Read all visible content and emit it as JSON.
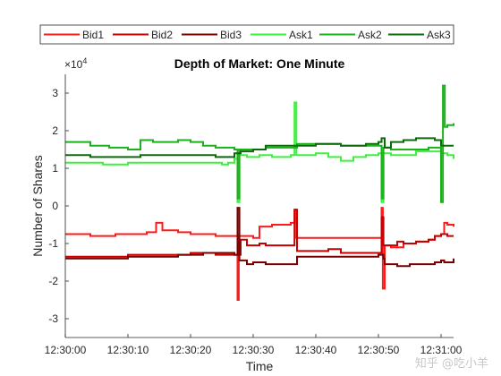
{
  "chart_data": {
    "type": "line",
    "title": "Depth of Market: One Minute",
    "xlabel": "Time",
    "ylabel": "Number of Shares",
    "y_exponent_label": "×10",
    "y_exponent_power": "4",
    "x_range_seconds": [
      0,
      62
    ],
    "ylim": [
      -3.5,
      3.5
    ],
    "x_ticks": [
      {
        "t": 0,
        "label": "12:30:00"
      },
      {
        "t": 10,
        "label": "12:30:10"
      },
      {
        "t": 20,
        "label": "12:30:20"
      },
      {
        "t": 30,
        "label": "12:30:30"
      },
      {
        "t": 40,
        "label": "12:30:40"
      },
      {
        "t": 50,
        "label": "12:30:50"
      },
      {
        "t": 60,
        "label": "12:31:00"
      }
    ],
    "y_ticks": [
      -3,
      -2,
      -1,
      0,
      1,
      2,
      3
    ],
    "grid": false,
    "legend_position": "top",
    "series": [
      {
        "name": "Bid1",
        "color": "#ff1a1a",
        "points": [
          [
            0,
            -0.75
          ],
          [
            4,
            -0.8
          ],
          [
            8,
            -0.75
          ],
          [
            13,
            -0.7
          ],
          [
            14.5,
            -0.45
          ],
          [
            15.5,
            -0.65
          ],
          [
            18,
            -0.7
          ],
          [
            20,
            -0.75
          ],
          [
            24,
            -0.8
          ],
          [
            27,
            -0.8
          ],
          [
            27.5,
            -2.5
          ],
          [
            27.7,
            -0.8
          ],
          [
            30,
            -0.85
          ],
          [
            31,
            -0.55
          ],
          [
            33,
            -0.5
          ],
          [
            36,
            -0.45
          ],
          [
            36.6,
            -0.1
          ],
          [
            36.9,
            -0.85
          ],
          [
            42,
            -0.85
          ],
          [
            48,
            -0.85
          ],
          [
            50,
            -0.85
          ],
          [
            50.5,
            -0.05
          ],
          [
            50.7,
            -2.2
          ],
          [
            51,
            -1.05
          ],
          [
            52,
            -1.1
          ],
          [
            54,
            -1.0
          ],
          [
            56,
            -0.95
          ],
          [
            58,
            -0.9
          ],
          [
            59,
            -0.8
          ],
          [
            60,
            -0.75
          ],
          [
            60.5,
            -0.45
          ],
          [
            61,
            -0.5
          ],
          [
            62,
            -0.55
          ]
        ]
      },
      {
        "name": "Bid2",
        "color": "#c40000",
        "points": [
          [
            0,
            -1.35
          ],
          [
            4,
            -1.35
          ],
          [
            8,
            -1.35
          ],
          [
            10,
            -1.3
          ],
          [
            14,
            -1.3
          ],
          [
            20,
            -1.25
          ],
          [
            24,
            -1.3
          ],
          [
            27.5,
            -1.3
          ],
          [
            28,
            -0.9
          ],
          [
            29,
            -1.05
          ],
          [
            31,
            -1.0
          ],
          [
            32,
            -1.05
          ],
          [
            36,
            -1.05
          ],
          [
            36.6,
            -0.1
          ],
          [
            37,
            -1.2
          ],
          [
            42,
            -1.15
          ],
          [
            44,
            -1.25
          ],
          [
            50,
            -1.25
          ],
          [
            50.5,
            -0.3
          ],
          [
            50.8,
            -1.05
          ],
          [
            51,
            -1.05
          ],
          [
            53,
            -0.95
          ],
          [
            54,
            -1.0
          ],
          [
            56,
            -0.95
          ],
          [
            57,
            -0.95
          ],
          [
            58,
            -0.9
          ],
          [
            59,
            -0.8
          ],
          [
            60,
            -0.75
          ],
          [
            61,
            -0.8
          ],
          [
            62,
            -0.8
          ]
        ]
      },
      {
        "name": "Bid3",
        "color": "#7a0000",
        "points": [
          [
            0,
            -1.4
          ],
          [
            8,
            -1.4
          ],
          [
            10,
            -1.35
          ],
          [
            14,
            -1.35
          ],
          [
            18,
            -1.3
          ],
          [
            22,
            -1.25
          ],
          [
            25,
            -1.25
          ],
          [
            27,
            -1.3
          ],
          [
            27.5,
            -0.05
          ],
          [
            27.8,
            -1.45
          ],
          [
            29,
            -1.55
          ],
          [
            30,
            -1.5
          ],
          [
            32,
            -1.55
          ],
          [
            36,
            -1.55
          ],
          [
            37,
            -1.35
          ],
          [
            42,
            -1.35
          ],
          [
            44,
            -1.35
          ],
          [
            50,
            -1.3
          ],
          [
            50.8,
            -1.4
          ],
          [
            51,
            -1.55
          ],
          [
            53,
            -1.6
          ],
          [
            55,
            -1.55
          ],
          [
            58,
            -1.55
          ],
          [
            59,
            -1.5
          ],
          [
            60,
            -1.45
          ],
          [
            60.5,
            -1.5
          ],
          [
            62,
            -1.4
          ]
        ]
      },
      {
        "name": "Ask1",
        "color": "#3df23d",
        "points": [
          [
            0,
            1.15
          ],
          [
            4,
            1.15
          ],
          [
            6,
            1.1
          ],
          [
            10,
            1.15
          ],
          [
            14,
            1.15
          ],
          [
            18,
            1.15
          ],
          [
            22,
            1.15
          ],
          [
            25,
            1.1
          ],
          [
            26,
            1.15
          ],
          [
            27,
            1.25
          ],
          [
            27.5,
            0.1
          ],
          [
            27.8,
            1.35
          ],
          [
            29,
            1.3
          ],
          [
            31,
            1.35
          ],
          [
            33,
            1.3
          ],
          [
            36,
            1.35
          ],
          [
            36.6,
            2.75
          ],
          [
            36.9,
            1.35
          ],
          [
            38,
            1.35
          ],
          [
            40,
            1.4
          ],
          [
            42,
            1.3
          ],
          [
            44,
            1.2
          ],
          [
            46,
            1.3
          ],
          [
            48,
            1.35
          ],
          [
            50,
            1.4
          ],
          [
            50.5,
            0.1
          ],
          [
            50.8,
            1.4
          ],
          [
            52,
            1.35
          ],
          [
            56,
            1.45
          ],
          [
            58,
            1.45
          ],
          [
            60,
            1.4
          ],
          [
            61,
            1.35
          ],
          [
            62,
            1.25
          ]
        ]
      },
      {
        "name": "Ask2",
        "color": "#1cb01c",
        "points": [
          [
            0,
            1.7
          ],
          [
            4,
            1.6
          ],
          [
            7,
            1.55
          ],
          [
            10,
            1.5
          ],
          [
            11,
            1.5
          ],
          [
            12,
            1.75
          ],
          [
            14,
            1.7
          ],
          [
            16,
            1.7
          ],
          [
            18,
            1.75
          ],
          [
            20,
            1.7
          ],
          [
            22,
            1.6
          ],
          [
            24,
            1.55
          ],
          [
            27,
            1.5
          ],
          [
            27.5,
            0.2
          ],
          [
            27.8,
            1.5
          ],
          [
            30,
            1.5
          ],
          [
            32,
            1.55
          ],
          [
            36,
            1.55
          ],
          [
            37,
            1.65
          ],
          [
            40,
            1.65
          ],
          [
            44,
            1.6
          ],
          [
            48,
            1.6
          ],
          [
            50,
            1.6
          ],
          [
            50.5,
            0.2
          ],
          [
            50.8,
            1.55
          ],
          [
            52,
            1.5
          ],
          [
            56,
            1.5
          ],
          [
            58,
            1.55
          ],
          [
            59,
            1.55
          ],
          [
            60,
            0.1
          ],
          [
            60.3,
            3.2
          ],
          [
            60.6,
            2.1
          ],
          [
            61,
            2.15
          ],
          [
            62,
            2.2
          ]
        ]
      },
      {
        "name": "Ask3",
        "color": "#0b6b0b",
        "points": [
          [
            0,
            1.35
          ],
          [
            4,
            1.3
          ],
          [
            8,
            1.3
          ],
          [
            12,
            1.35
          ],
          [
            16,
            1.35
          ],
          [
            20,
            1.35
          ],
          [
            24,
            1.3
          ],
          [
            26,
            1.3
          ],
          [
            27,
            1.4
          ],
          [
            28,
            1.45
          ],
          [
            30,
            1.5
          ],
          [
            32,
            1.6
          ],
          [
            36,
            1.6
          ],
          [
            38,
            1.6
          ],
          [
            40,
            1.65
          ],
          [
            44,
            1.6
          ],
          [
            48,
            1.65
          ],
          [
            50,
            1.7
          ],
          [
            50.5,
            1.8
          ],
          [
            51,
            1.55
          ],
          [
            52,
            1.7
          ],
          [
            54,
            1.75
          ],
          [
            56,
            1.8
          ],
          [
            58,
            1.8
          ],
          [
            59,
            1.75
          ],
          [
            60,
            1.6
          ],
          [
            62,
            1.6
          ]
        ]
      }
    ]
  },
  "watermark": "知乎 @吃小羊"
}
